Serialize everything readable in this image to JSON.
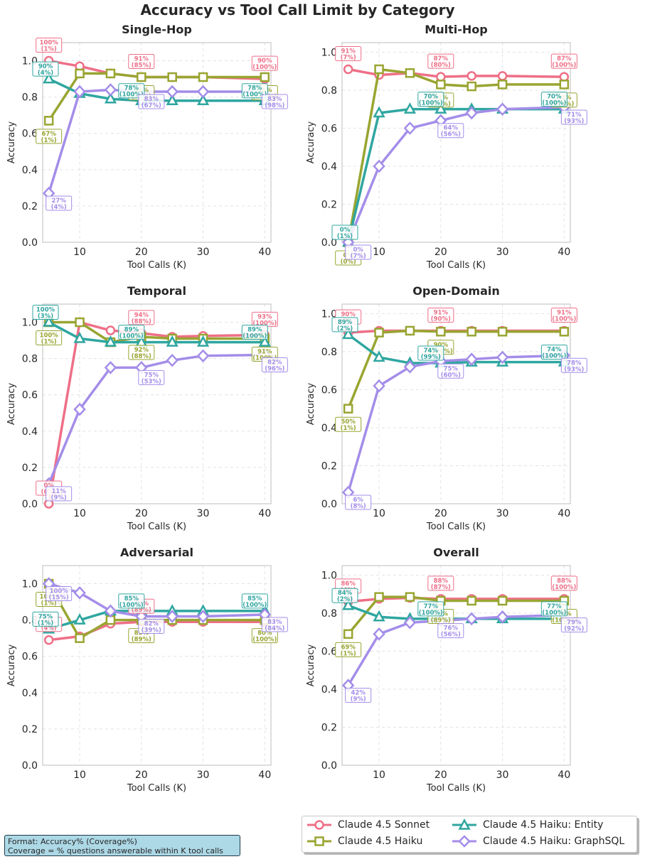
{
  "suptitle": "Accuracy vs Tool Call Limit by Category",
  "format_note": {
    "line1": "Format: Accuracy% (Coverage%)",
    "line2": "Coverage = % questions answerable within K tool calls"
  },
  "colors": {
    "sonnet": "#ee6f87",
    "haiku": "#99a531",
    "entity": "#2fa6a0",
    "graphsql": "#a48de9"
  },
  "legend": [
    {
      "key": "sonnet",
      "label": "Claude 4.5 Sonnet",
      "marker": "circle"
    },
    {
      "key": "haiku",
      "label": "Claude 4.5 Haiku",
      "marker": "square"
    },
    {
      "key": "entity",
      "label": "Claude 4.5 Haiku: Entity",
      "marker": "triangle"
    },
    {
      "key": "graphsql",
      "label": "Claude 4.5 Haiku: GraphSQL",
      "marker": "diamond"
    }
  ],
  "chart_data": [
    {
      "type": "line",
      "title": "Single-Hop",
      "xlabel": "Tool Calls (K)",
      "ylabel": "Accuracy",
      "x": [
        5,
        10,
        15,
        20,
        25,
        30,
        40
      ],
      "xticks": [
        10,
        20,
        30,
        40
      ],
      "yticks": [
        "0.0",
        "0.2",
        "0.4",
        "0.6",
        "0.8",
        "1.0"
      ],
      "ylim": [
        0,
        1.1
      ],
      "grid": true,
      "series": [
        {
          "key": "sonnet",
          "name": "Claude 4.5 Sonnet",
          "values": [
            1.0,
            0.97,
            0.93,
            0.91,
            0.91,
            0.91,
            0.9
          ]
        },
        {
          "key": "haiku",
          "name": "Claude 4.5 Haiku",
          "values": [
            0.67,
            0.93,
            0.93,
            0.91,
            0.91,
            0.91,
            0.91
          ]
        },
        {
          "key": "entity",
          "name": "Claude 4.5 Haiku: Entity",
          "values": [
            0.9,
            0.82,
            0.79,
            0.78,
            0.78,
            0.78,
            0.78
          ]
        },
        {
          "key": "graphsql",
          "name": "Claude 4.5 Haiku: GraphSQL",
          "values": [
            0.27,
            0.83,
            0.84,
            0.83,
            0.83,
            0.83,
            0.83
          ]
        }
      ],
      "annotations": [
        {
          "key": "sonnet",
          "line1": "100%",
          "line2": "(1%)"
        },
        {
          "key": "sonnet",
          "line1": "91%",
          "line2": "(85%)"
        },
        {
          "key": "sonnet",
          "line1": "90%",
          "line2": "(100%)"
        },
        {
          "key": "haiku",
          "line1": "67%",
          "line2": "(1%)"
        },
        {
          "key": "haiku",
          "line1": "91%",
          "line2": "(95%)"
        },
        {
          "key": "haiku",
          "line1": "91%",
          "line2": "(100%)"
        },
        {
          "key": "entity",
          "line1": "90%",
          "line2": "(4%)"
        },
        {
          "key": "entity",
          "line1": "78%",
          "line2": "(100%)"
        },
        {
          "key": "entity",
          "line1": "78%",
          "line2": "(100%)"
        },
        {
          "key": "graphsql",
          "line1": "27%",
          "line2": "(4%)"
        },
        {
          "key": "graphsql",
          "line1": "83%",
          "line2": "(67%)"
        },
        {
          "key": "graphsql",
          "line1": "83%",
          "line2": "(98%)"
        }
      ]
    },
    {
      "type": "line",
      "title": "Multi-Hop",
      "xlabel": "Tool Calls (K)",
      "ylabel": "Accuracy",
      "x": [
        5,
        10,
        15,
        20,
        25,
        30,
        40
      ],
      "xticks": [
        10,
        20,
        30,
        40
      ],
      "yticks": [
        "0.0",
        "0.2",
        "0.4",
        "0.6",
        "0.8",
        "1.0"
      ],
      "ylim": [
        0,
        1.05
      ],
      "grid": true,
      "series": [
        {
          "key": "sonnet",
          "name": "Claude 4.5 Sonnet",
          "values": [
            0.91,
            0.88,
            0.89,
            0.87,
            0.875,
            0.875,
            0.87
          ]
        },
        {
          "key": "haiku",
          "name": "Claude 4.5 Haiku",
          "values": [
            0.0,
            0.91,
            0.89,
            0.83,
            0.82,
            0.83,
            0.83
          ]
        },
        {
          "key": "entity",
          "name": "Claude 4.5 Haiku: Entity",
          "values": [
            0.0,
            0.68,
            0.7,
            0.7,
            0.7,
            0.7,
            0.7
          ]
        },
        {
          "key": "graphsql",
          "name": "Claude 4.5 Haiku: GraphSQL",
          "values": [
            0.0,
            0.4,
            0.6,
            0.64,
            0.68,
            0.7,
            0.71
          ]
        }
      ],
      "annotations": [
        {
          "key": "sonnet",
          "line1": "91%",
          "line2": "(7%)"
        },
        {
          "key": "sonnet",
          "line1": "87%",
          "line2": "(80%)"
        },
        {
          "key": "sonnet",
          "line1": "87%",
          "line2": "(100%)"
        },
        {
          "key": "haiku",
          "line1": "0%",
          "line2": "(0%)"
        },
        {
          "key": "haiku",
          "line1": "83%",
          "line2": "(80%)"
        },
        {
          "key": "haiku",
          "line1": "83%",
          "line2": "(93%)"
        },
        {
          "key": "entity",
          "line1": "0%",
          "line2": "(1%)"
        },
        {
          "key": "entity",
          "line1": "70%",
          "line2": "(100%)"
        },
        {
          "key": "entity",
          "line1": "70%",
          "line2": "(100%)"
        },
        {
          "key": "graphsql",
          "line1": "0%",
          "line2": "(7%)"
        },
        {
          "key": "graphsql",
          "line1": "64%",
          "line2": "(56%)"
        },
        {
          "key": "graphsql",
          "line1": "71%",
          "line2": "(93%)"
        }
      ]
    },
    {
      "type": "line",
      "title": "Temporal",
      "xlabel": "Tool Calls (K)",
      "ylabel": "Accuracy",
      "x": [
        5,
        10,
        15,
        20,
        25,
        30,
        40
      ],
      "xticks": [
        10,
        20,
        30,
        40
      ],
      "yticks": [
        "0.0",
        "0.2",
        "0.4",
        "0.6",
        "0.8",
        "1.0"
      ],
      "ylim": [
        0,
        1.1
      ],
      "grid": true,
      "series": [
        {
          "key": "sonnet",
          "name": "Claude 4.5 Sonnet",
          "values": [
            0.0,
            1.0,
            0.955,
            0.94,
            0.92,
            0.925,
            0.93
          ]
        },
        {
          "key": "haiku",
          "name": "Claude 4.5 Haiku",
          "values": [
            1.0,
            1.0,
            0.89,
            0.92,
            0.91,
            0.91,
            0.91
          ]
        },
        {
          "key": "entity",
          "name": "Claude 4.5 Haiku: Entity",
          "values": [
            1.0,
            0.91,
            0.89,
            0.89,
            0.89,
            0.89,
            0.89
          ]
        },
        {
          "key": "graphsql",
          "name": "Claude 4.5 Haiku: GraphSQL",
          "values": [
            0.11,
            0.52,
            0.75,
            0.75,
            0.79,
            0.815,
            0.82
          ]
        }
      ],
      "annotations": [
        {
          "key": "sonnet",
          "line1": "0%",
          "line2": "(0%)"
        },
        {
          "key": "sonnet",
          "line1": "94%",
          "line2": "(88%)"
        },
        {
          "key": "sonnet",
          "line1": "93%",
          "line2": "(100%)"
        },
        {
          "key": "haiku",
          "line1": "100%",
          "line2": "(1%)"
        },
        {
          "key": "haiku",
          "line1": "92%",
          "line2": "(88%)"
        },
        {
          "key": "haiku",
          "line1": "91%",
          "line2": "(100%)"
        },
        {
          "key": "entity",
          "line1": "100%",
          "line2": "(3%)"
        },
        {
          "key": "entity",
          "line1": "89%",
          "line2": "(100%)"
        },
        {
          "key": "entity",
          "line1": "89%",
          "line2": "(100%)"
        },
        {
          "key": "graphsql",
          "line1": "11%",
          "line2": "(9%)"
        },
        {
          "key": "graphsql",
          "line1": "75%",
          "line2": "(53%)"
        },
        {
          "key": "graphsql",
          "line1": "82%",
          "line2": "(96%)"
        }
      ]
    },
    {
      "type": "line",
      "title": "Open-Domain",
      "xlabel": "Tool Calls (K)",
      "ylabel": "Accuracy",
      "x": [
        5,
        10,
        15,
        20,
        25,
        30,
        40
      ],
      "xticks": [
        10,
        20,
        30,
        40
      ],
      "yticks": [
        "0.0",
        "0.2",
        "0.4",
        "0.6",
        "0.8",
        "1.0"
      ],
      "ylim": [
        0,
        1.05
      ],
      "grid": true,
      "series": [
        {
          "key": "sonnet",
          "name": "Claude 4.5 Sonnet",
          "values": [
            0.9,
            0.91,
            0.91,
            0.91,
            0.91,
            0.91,
            0.91
          ]
        },
        {
          "key": "haiku",
          "name": "Claude 4.5 Haiku",
          "values": [
            0.5,
            0.9,
            0.91,
            0.905,
            0.905,
            0.905,
            0.905
          ]
        },
        {
          "key": "entity",
          "name": "Claude 4.5 Haiku: Entity",
          "values": [
            0.89,
            0.77,
            0.74,
            0.74,
            0.745,
            0.745,
            0.745
          ]
        },
        {
          "key": "graphsql",
          "name": "Claude 4.5 Haiku: GraphSQL",
          "values": [
            0.06,
            0.62,
            0.72,
            0.75,
            0.76,
            0.77,
            0.78
          ]
        }
      ],
      "annotations": [
        {
          "key": "sonnet",
          "line1": "90%",
          "line2": "(2%)"
        },
        {
          "key": "sonnet",
          "line1": "91%",
          "line2": "(90%)"
        },
        {
          "key": "sonnet",
          "line1": "91%",
          "line2": "(100%)"
        },
        {
          "key": "haiku",
          "line1": "50%",
          "line2": "(1%)"
        },
        {
          "key": "haiku",
          "line1": "90%",
          "line2": "(100%)"
        },
        {
          "key": "entity",
          "line1": "89%",
          "line2": "(2%)"
        },
        {
          "key": "entity",
          "line1": "74%",
          "line2": "(99%)"
        },
        {
          "key": "entity",
          "line1": "74%",
          "line2": "(100%)"
        },
        {
          "key": "graphsql",
          "line1": "6%",
          "line2": "(8%)"
        },
        {
          "key": "graphsql",
          "line1": "75%",
          "line2": "(60%)"
        },
        {
          "key": "graphsql",
          "line1": "78%",
          "line2": "(93%)"
        }
      ]
    },
    {
      "type": "line",
      "title": "Adversarial",
      "xlabel": "Tool Calls (K)",
      "ylabel": "Accuracy",
      "x": [
        5,
        10,
        15,
        20,
        25,
        30,
        40
      ],
      "xticks": [
        10,
        20,
        30,
        40
      ],
      "yticks": [
        "0.0",
        "0.2",
        "0.4",
        "0.6",
        "0.8",
        "1.0"
      ],
      "ylim": [
        0,
        1.1
      ],
      "grid": true,
      "series": [
        {
          "key": "sonnet",
          "name": "Claude 4.5 Sonnet",
          "values": [
            0.69,
            0.71,
            0.78,
            0.79,
            0.79,
            0.79,
            0.79
          ]
        },
        {
          "key": "haiku",
          "name": "Claude 4.5 Haiku",
          "values": [
            1.0,
            0.7,
            0.8,
            0.8,
            0.8,
            0.8,
            0.8
          ]
        },
        {
          "key": "entity",
          "name": "Claude 4.5 Haiku: Entity",
          "values": [
            0.75,
            0.8,
            0.85,
            0.85,
            0.85,
            0.85,
            0.85
          ]
        },
        {
          "key": "graphsql",
          "name": "Claude 4.5 Haiku: GraphSQL",
          "values": [
            1.0,
            0.95,
            0.85,
            0.82,
            0.82,
            0.82,
            0.83
          ]
        }
      ],
      "annotations": [
        {
          "key": "sonnet",
          "line1": "69%",
          "line2": "(4%)"
        },
        {
          "key": "sonnet",
          "line1": "79%",
          "line2": "(89%)"
        },
        {
          "key": "haiku",
          "line1": "100%",
          "line2": "(1%)"
        },
        {
          "key": "haiku",
          "line1": "80%",
          "line2": "(89%)"
        },
        {
          "key": "haiku",
          "line1": "80%",
          "line2": "(100%)"
        },
        {
          "key": "entity",
          "line1": "75%",
          "line2": "(1%)"
        },
        {
          "key": "entity",
          "line1": "85%",
          "line2": "(100%)"
        },
        {
          "key": "entity",
          "line1": "85%",
          "line2": "(100%)"
        },
        {
          "key": "graphsql",
          "line1": "100%",
          "line2": "(15%)"
        },
        {
          "key": "graphsql",
          "line1": "82%",
          "line2": "(39%)"
        },
        {
          "key": "graphsql",
          "line1": "83%",
          "line2": "(84%)"
        }
      ]
    },
    {
      "type": "line",
      "title": "Overall",
      "xlabel": "Tool Calls (K)",
      "ylabel": "Accuracy",
      "x": [
        5,
        10,
        15,
        20,
        25,
        30,
        40
      ],
      "xticks": [
        10,
        20,
        30,
        40
      ],
      "yticks": [
        "0.0",
        "0.2",
        "0.4",
        "0.6",
        "0.8",
        "1.0"
      ],
      "ylim": [
        0,
        1.05
      ],
      "grid": true,
      "series": [
        {
          "key": "sonnet",
          "name": "Claude 4.5 Sonnet",
          "values": [
            0.86,
            0.875,
            0.88,
            0.875,
            0.875,
            0.875,
            0.875
          ]
        },
        {
          "key": "haiku",
          "name": "Claude 4.5 Haiku",
          "values": [
            0.69,
            0.885,
            0.885,
            0.865,
            0.865,
            0.865,
            0.865
          ]
        },
        {
          "key": "entity",
          "name": "Claude 4.5 Haiku: Entity",
          "values": [
            0.84,
            0.78,
            0.77,
            0.77,
            0.77,
            0.77,
            0.77
          ]
        },
        {
          "key": "graphsql",
          "name": "Claude 4.5 Haiku: GraphSQL",
          "values": [
            0.42,
            0.69,
            0.75,
            0.76,
            0.77,
            0.78,
            0.79
          ]
        }
      ],
      "annotations": [
        {
          "key": "sonnet",
          "line1": "86%",
          "line2": "(4%)"
        },
        {
          "key": "sonnet",
          "line1": "88%",
          "line2": "(87%)"
        },
        {
          "key": "sonnet",
          "line1": "88%",
          "line2": "(100%)"
        },
        {
          "key": "haiku",
          "line1": "69%",
          "line2": "(1%)"
        },
        {
          "key": "haiku",
          "line1": "86%",
          "line2": "(89%)"
        },
        {
          "key": "haiku",
          "line1": "86%",
          "line2": "(100%)"
        },
        {
          "key": "entity",
          "line1": "84%",
          "line2": "(2%)"
        },
        {
          "key": "entity",
          "line1": "77%",
          "line2": "(100%)"
        },
        {
          "key": "entity",
          "line1": "77%",
          "line2": "(100%)"
        },
        {
          "key": "graphsql",
          "line1": "42%",
          "line2": "(9%)"
        },
        {
          "key": "graphsql",
          "line1": "76%",
          "line2": "(56%)"
        },
        {
          "key": "graphsql",
          "line1": "79%",
          "line2": "(92%)"
        }
      ]
    }
  ]
}
